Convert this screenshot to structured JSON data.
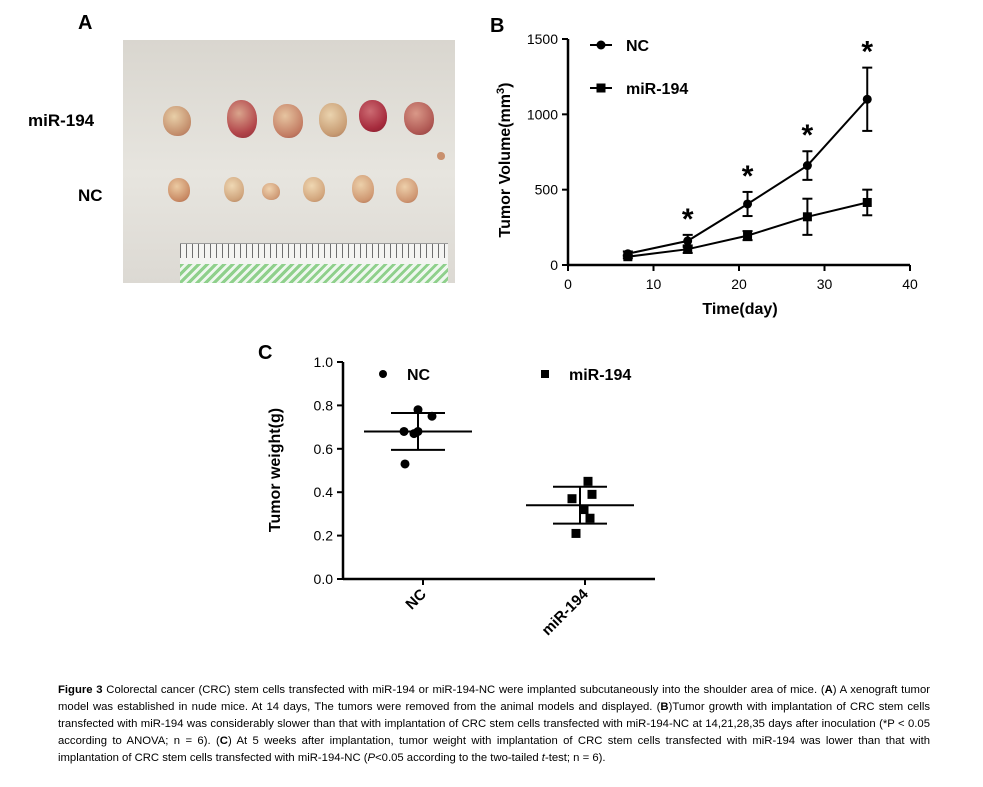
{
  "panels": {
    "a": {
      "letter": "A",
      "row_labels": [
        "miR-194",
        "NC"
      ]
    },
    "b": {
      "letter": "B",
      "asterisk": "*"
    },
    "c": {
      "letter": "C"
    }
  },
  "chart_data": [
    {
      "type": "line",
      "panel": "B",
      "title": "",
      "xlabel": "Time(day)",
      "ylabel": "Tumor Volume(mm³)",
      "ylabel_base": "Tumor Volume(mm",
      "ylabel_sup": "3",
      "ylabel_end": ")",
      "xlim": [
        0,
        40
      ],
      "ylim": [
        0,
        1500
      ],
      "xticks": [
        0,
        10,
        20,
        30,
        40
      ],
      "yticks": [
        0,
        500,
        1000,
        1500
      ],
      "x": [
        7,
        14,
        21,
        28,
        35
      ],
      "series": [
        {
          "name": "NC",
          "marker": "circle",
          "values": [
            75,
            160,
            405,
            660,
            1100
          ],
          "errors": [
            15,
            40,
            80,
            95,
            210
          ]
        },
        {
          "name": "miR-194",
          "marker": "square",
          "values": [
            55,
            105,
            195,
            320,
            415
          ],
          "errors": [
            10,
            25,
            30,
            120,
            85
          ]
        }
      ],
      "significant_x": [
        14,
        21,
        28,
        35
      ],
      "legend": "top-left"
    },
    {
      "type": "scatter",
      "panel": "C",
      "title": "",
      "xlabel": "",
      "ylabel": "Tumor weight(g)",
      "ylim": [
        0.0,
        1.0
      ],
      "yticks": [
        "0.0",
        "0.2",
        "0.4",
        "0.6",
        "0.8",
        "1.0"
      ],
      "categories": [
        "NC",
        "miR-194"
      ],
      "groups": [
        {
          "name": "NC",
          "marker": "circle",
          "points": [
            0.78,
            0.75,
            0.68,
            0.68,
            0.67,
            0.53
          ],
          "mean": 0.68,
          "sd": 0.085
        },
        {
          "name": "miR-194",
          "marker": "square",
          "points": [
            0.45,
            0.39,
            0.37,
            0.32,
            0.28,
            0.21
          ],
          "mean": 0.34,
          "sd": 0.085
        }
      ],
      "legend": "top"
    }
  ],
  "caption": {
    "lead": "Figure 3",
    "p1": " Colorectal cancer (CRC) stem cells transfected with miR-194 or miR-194-NC were implanted subcutaneously into the shoulder area of mice. (",
    "A": "A",
    "p2": ") A xenograft tumor model was established in nude mice. At 14 days, The tumors were removed from the animal models and displayed. (",
    "B": "B",
    "p3": ")Tumor growth with implantation of CRC stem cells transfected with miR-194 was considerably slower than that with implantation of CRC stem cells transfected with miR-194-NC at 14,21,28,35 days after inoculation (*P < 0.05 according to ANOVA; n = 6). (",
    "C": "C",
    "p4": ") At 5 weeks after implantation, tumor weight with implantation of CRC stem cells transfected with miR-194 was lower than that with implantation of CRC stem cells transfected with miR-194-NC (",
    "p_italic": "P",
    "p5": "<0.05 according to the two-tailed ",
    "t_italic": "t",
    "p6": "-test; n = 6)."
  }
}
